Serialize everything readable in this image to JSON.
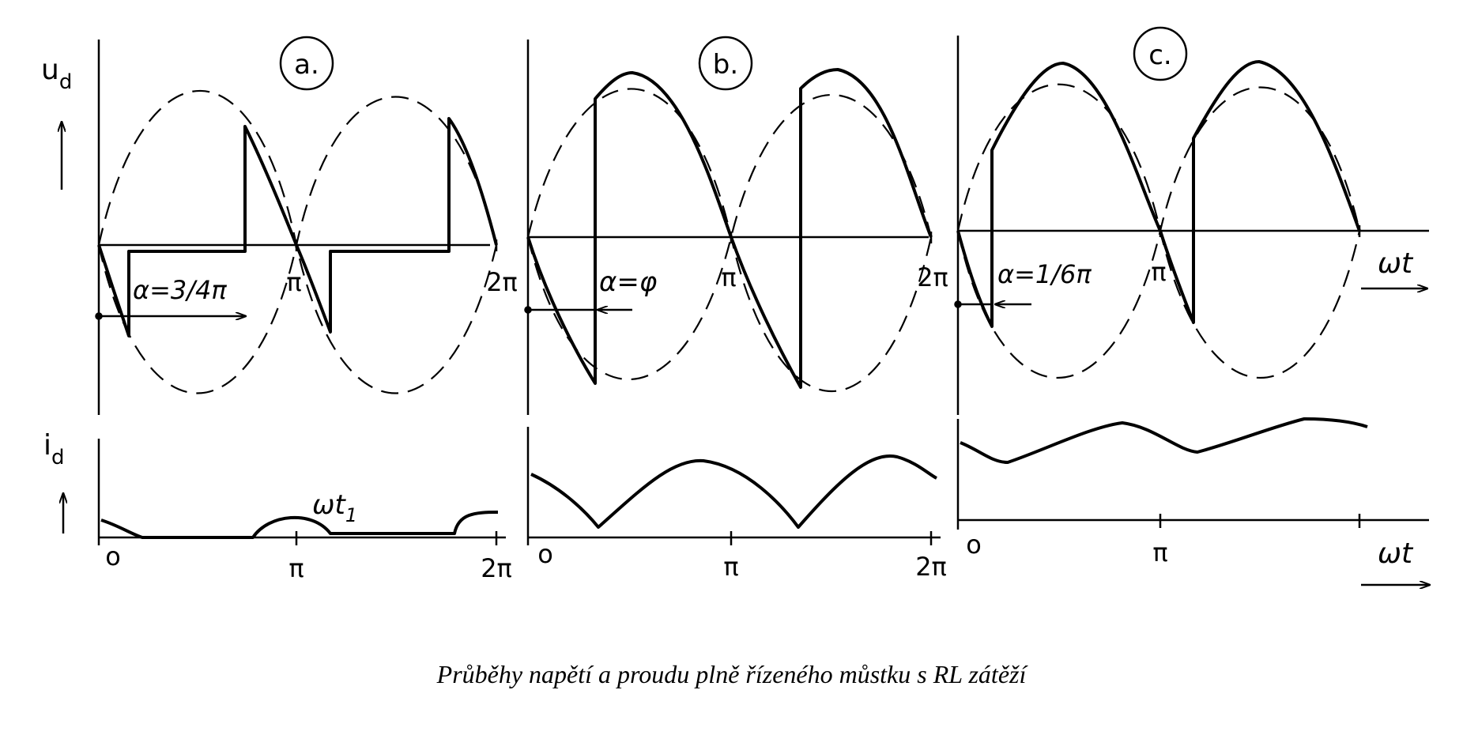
{
  "labels": {
    "u_axis_main": "u",
    "u_axis_sub": "d",
    "i_axis_main": "i",
    "i_axis_sub": "d",
    "omega_t": "ωt",
    "omega_t1_main": "ωt",
    "omega_t1_sub": "1",
    "pi": "π",
    "two_pi": "2π",
    "zero": "o"
  },
  "panels": [
    {
      "id": "a",
      "tag": "a.",
      "alpha_label": "α=3/4π"
    },
    {
      "id": "b",
      "tag": "b.",
      "alpha_label": "α=φ"
    },
    {
      "id": "c",
      "tag": "c.",
      "alpha_label": "α=1/6π"
    }
  ],
  "caption": "Průběhy napětí a proudu plně řízeného můstku s RL zátěží"
}
